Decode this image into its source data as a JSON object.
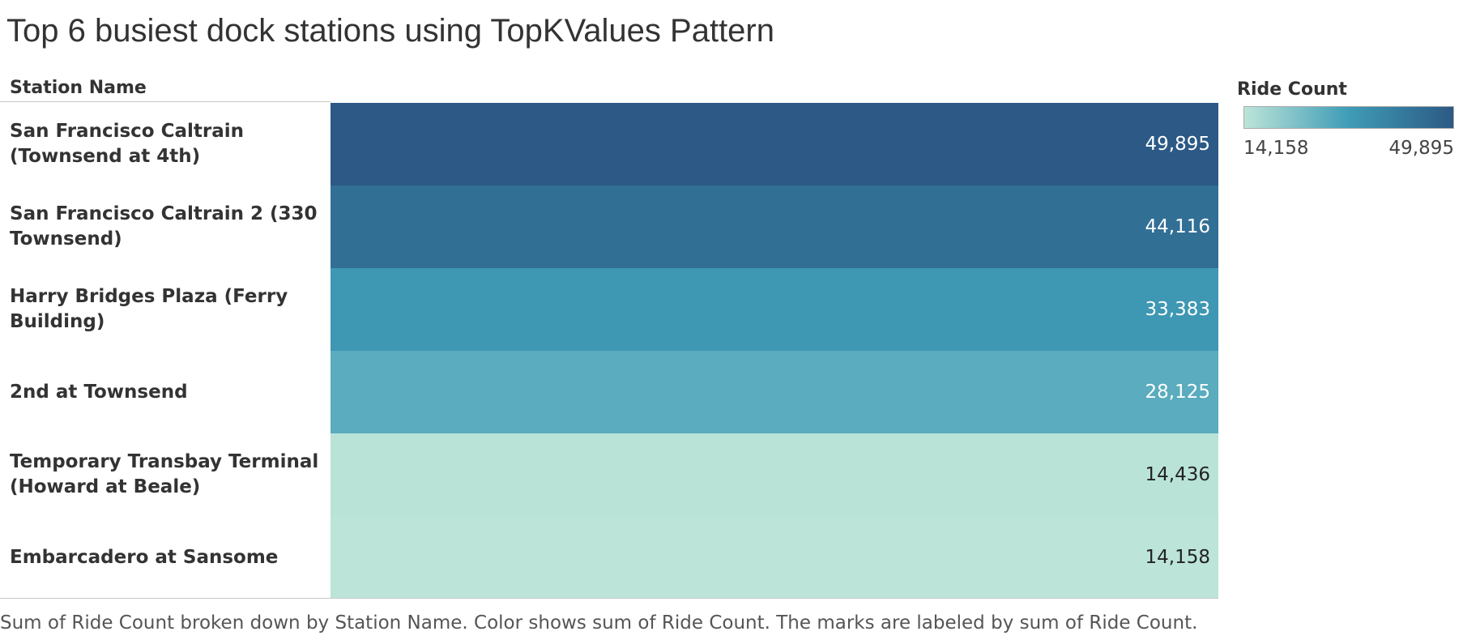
{
  "chart_data": {
    "type": "table",
    "title": "Top 6 busiest dock stations using TopKValues Pattern",
    "row_header": "Station Name",
    "categories": [
      "San Francisco Caltrain (Townsend at 4th)",
      "San Francisco Caltrain 2 (330 Townsend)",
      "Harry Bridges Plaza (Ferry Building)",
      "2nd at Townsend",
      "Temporary Transbay Terminal (Howard at Beale)",
      "Embarcadero at Sansome"
    ],
    "values": [
      49895,
      44116,
      33383,
      28125,
      14436,
      14158
    ],
    "value_labels": [
      "49,895",
      "44,116",
      "33,383",
      "28,125",
      "14,436",
      "14,158"
    ],
    "legend": {
      "title": "Ride Count",
      "min": 14158,
      "max": 49895,
      "min_label": "14,158",
      "max_label": "49,895",
      "colors": [
        "#bce4d8",
        "#3f9cb7",
        "#2c5985"
      ],
      "placement": "top-right"
    },
    "caption": "Sum of Ride Count broken down by Station Name.  Color shows sum of Ride Count.  The marks are labeled by sum of Ride Count."
  }
}
